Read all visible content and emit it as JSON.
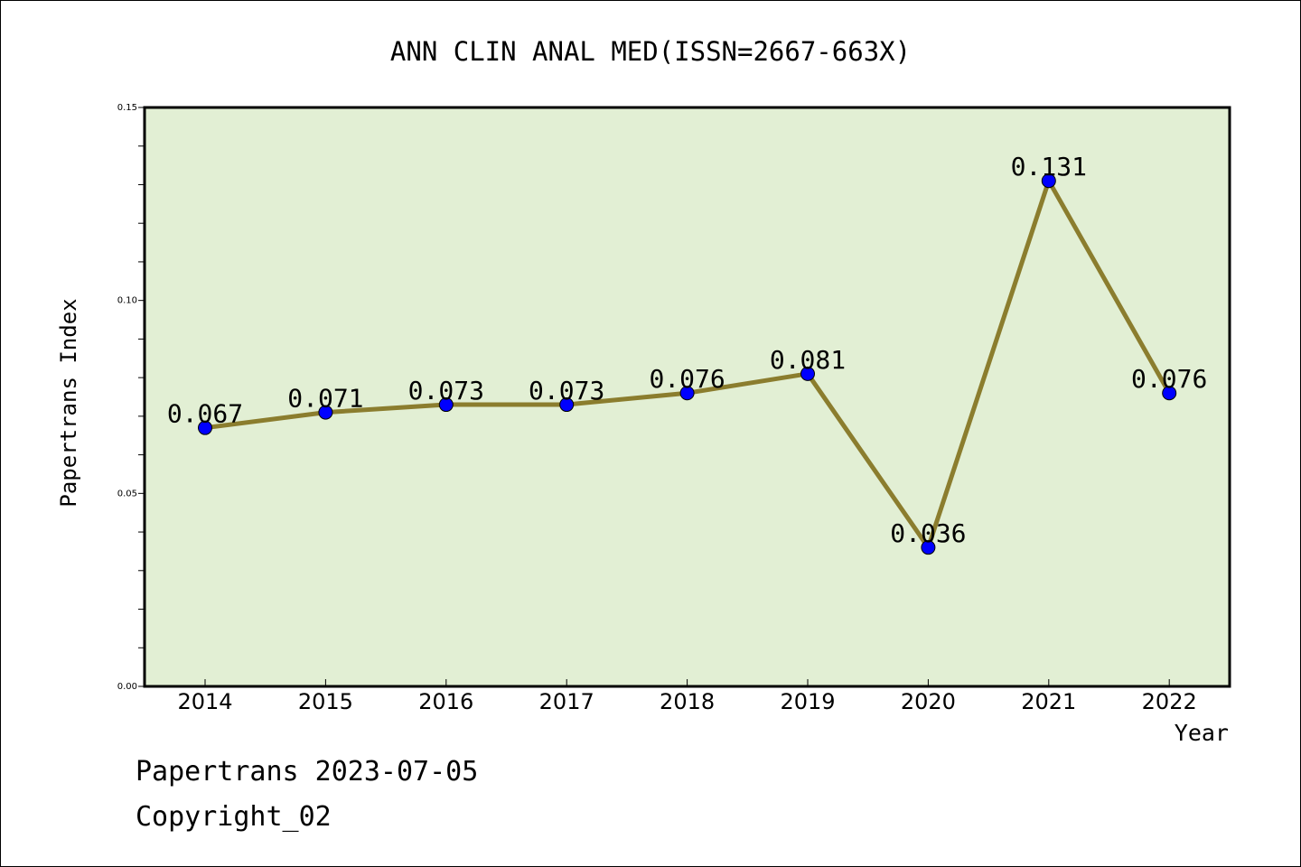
{
  "chart_data": {
    "type": "line",
    "title": "ANN CLIN ANAL MED(ISSN=2667-663X)",
    "xlabel": "Year",
    "ylabel": "Papertrans Index",
    "categories": [
      "2014",
      "2015",
      "2016",
      "2017",
      "2018",
      "2019",
      "2020",
      "2021",
      "2022"
    ],
    "values": [
      0.067,
      0.071,
      0.073,
      0.073,
      0.076,
      0.081,
      0.036,
      0.131,
      0.076
    ],
    "data_labels": [
      "0.067",
      "0.071",
      "0.073",
      "0.073",
      "0.076",
      "0.081",
      "0.036",
      "0.131",
      "0.076"
    ],
    "ylim": [
      0,
      0.15
    ],
    "yticks": [
      "0.00",
      "0.05",
      "0.10",
      "0.15"
    ],
    "grid": false,
    "colors": {
      "plot_bg": "#e2efd4",
      "line": "#8b7d2e",
      "marker": "#0000ff"
    }
  },
  "footer": {
    "line1": "Papertrans 2023-07-05",
    "line2": "Copyright_02"
  }
}
